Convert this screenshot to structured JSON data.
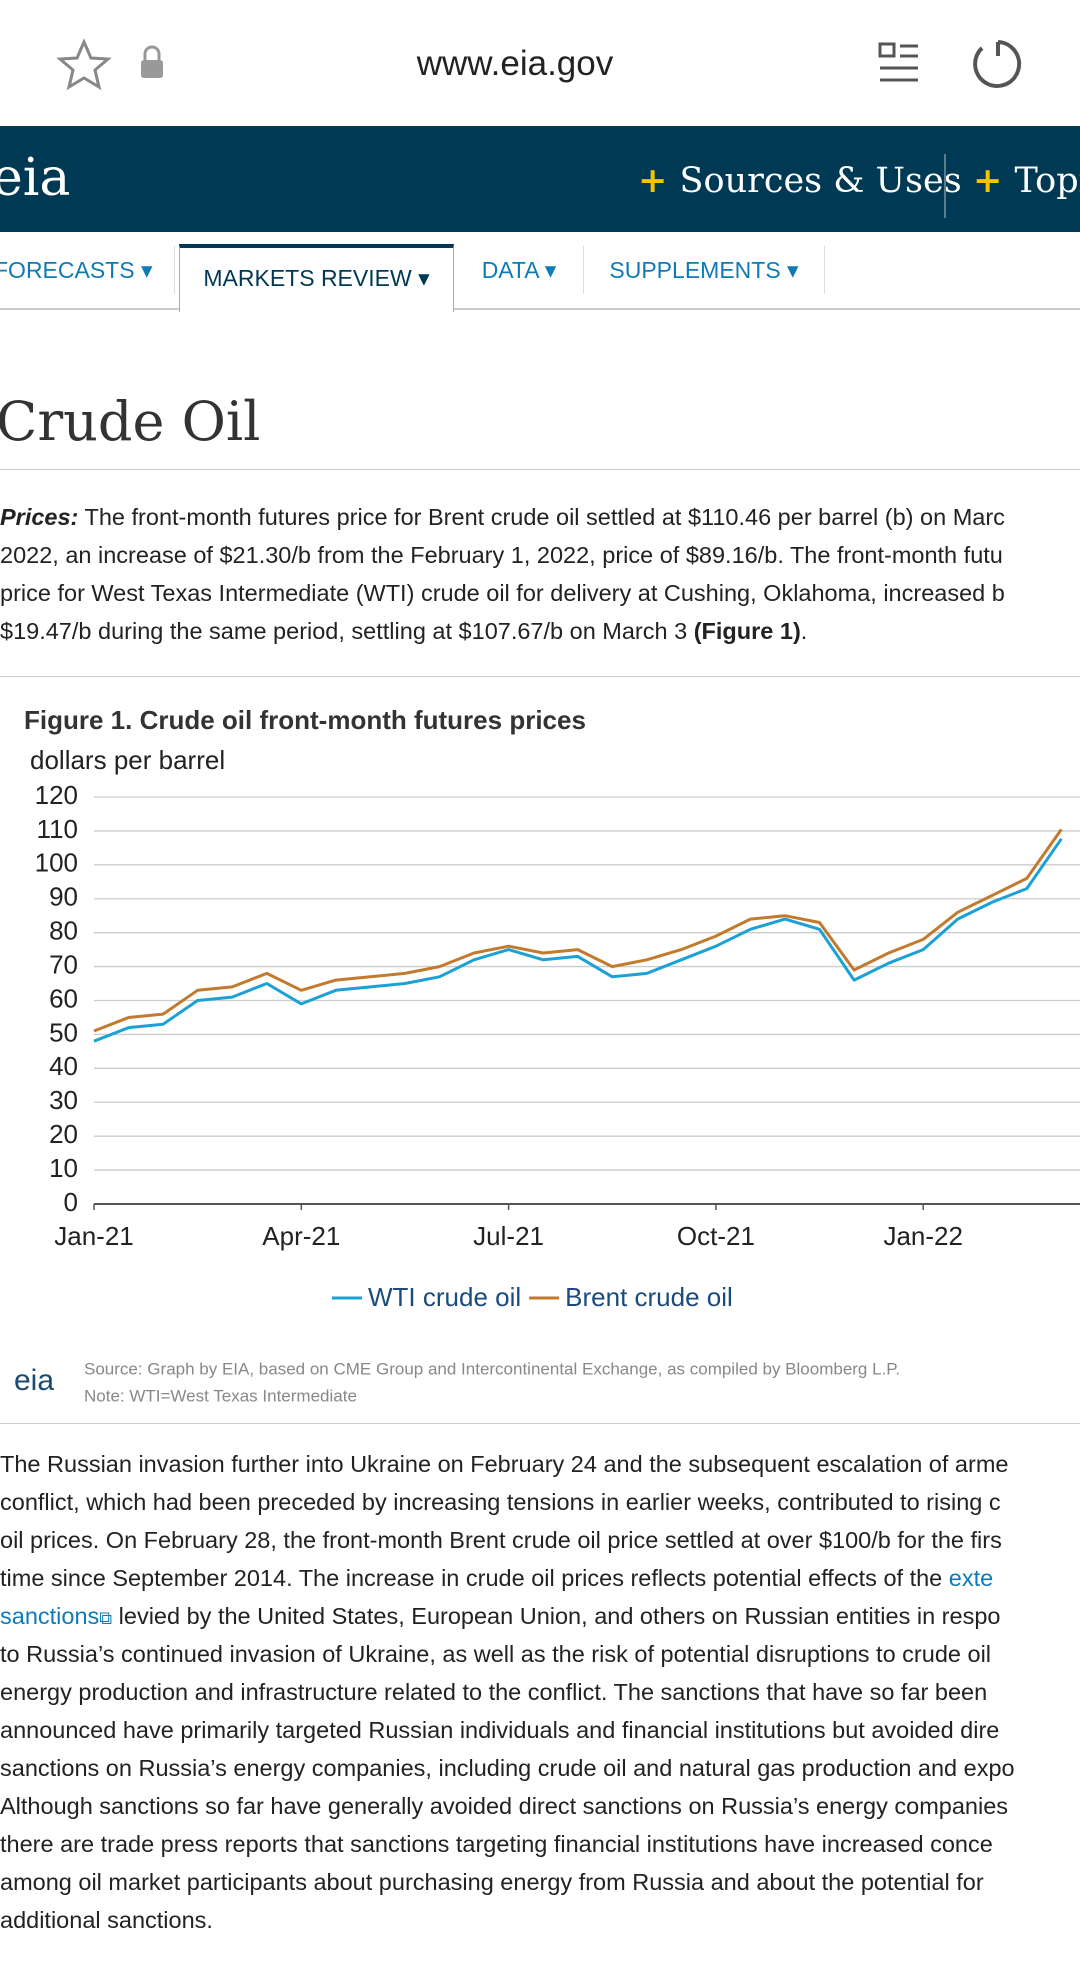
{
  "browser": {
    "url": "www.eia.gov"
  },
  "header": {
    "logo": "eia",
    "links": [
      "Sources & Uses",
      "Topic"
    ]
  },
  "tabs": [
    "FORECASTS",
    "MARKETS REVIEW",
    "DATA",
    "SUPPLEMENTS"
  ],
  "heading": "Crude Oil",
  "intro": {
    "label": "Prices:",
    "lines": [
      " The front-month futures price for Brent crude oil settled at $110.46 per barrel (b) on Marc",
      "2022, an increase of $21.30/b from the February 1, 2022, price of $89.16/b. The front-month futu",
      "price for West Texas Intermediate (WTI) crude oil for delivery at Cushing, Oklahoma, increased b",
      "$19.47/b during the same period, settling at $107.67/b on March 3 "
    ],
    "ref": "(Figure 1)",
    "end": "."
  },
  "chart_data": {
    "type": "line",
    "title": "Figure 1. Crude oil front-month futures prices",
    "y_label": "dollars per barrel",
    "categories": [
      "Jan-21",
      null,
      null,
      null,
      null,
      null,
      "Apr-21",
      null,
      null,
      null,
      null,
      null,
      "Jul-21",
      null,
      null,
      null,
      null,
      null,
      "Oct-21",
      null,
      null,
      null,
      null,
      null,
      "Jan-22",
      null,
      null,
      null,
      null
    ],
    "series": [
      {
        "name": "WTI crude oil",
        "color": "#1ba1d6",
        "values": [
          48,
          52,
          53,
          60,
          61,
          65,
          59,
          63,
          64,
          65,
          67,
          72,
          75,
          72,
          73,
          67,
          68,
          72,
          76,
          81,
          84,
          81,
          66,
          71,
          75,
          84,
          89,
          93,
          107.67
        ]
      },
      {
        "name": "Brent crude oil",
        "color": "#c27a2e",
        "values": [
          51,
          55,
          56,
          63,
          64,
          68,
          63,
          66,
          67,
          68,
          70,
          74,
          76,
          74,
          75,
          70,
          72,
          75,
          79,
          84,
          85,
          83,
          69,
          74,
          78,
          86,
          91,
          96,
          110.46
        ]
      }
    ],
    "ylim": [
      0,
      120
    ],
    "yticks": [
      0,
      10,
      20,
      30,
      40,
      50,
      60,
      70,
      80,
      90,
      100,
      110,
      120
    ],
    "grid": true,
    "source": "Source: Graph by EIA, based on CME Group and Intercontinental Exchange, as compiled by Bloomberg L.P.",
    "note": "Note: WTI=West Texas Intermediate",
    "source_logo": "eia"
  },
  "body": {
    "lines": [
      "The Russian invasion further into Ukraine on February 24 and the subsequent escalation of arme",
      "conflict, which had been preceded by increasing tensions in earlier weeks, contributed to rising c",
      "oil prices. On February 28, the front-month Brent crude oil price settled at over $100/b for the firs",
      "time since September 2014. The increase in crude oil prices reflects potential effects of the ",
      " levied by the United States, European Union, and others on Russian entities in respo",
      "to Russia’s continued invasion of Ukraine, as well as the risk of potential disruptions to crude oil",
      "energy production and infrastructure related to the conflict. The sanctions that have so far been",
      "announced have primarily targeted Russian individuals and financial institutions but avoided dire",
      "sanctions on Russia’s energy companies, including crude oil and natural gas production and expo",
      "Although sanctions so far have generally avoided direct sanctions on Russia’s energy companies",
      "there are trade press reports that sanctions targeting financial institutions have increased conce",
      "among oil market participants about purchasing energy from Russia and about the potential for",
      "additional sanctions."
    ],
    "link_parts": [
      "exte",
      "sanctions"
    ]
  }
}
